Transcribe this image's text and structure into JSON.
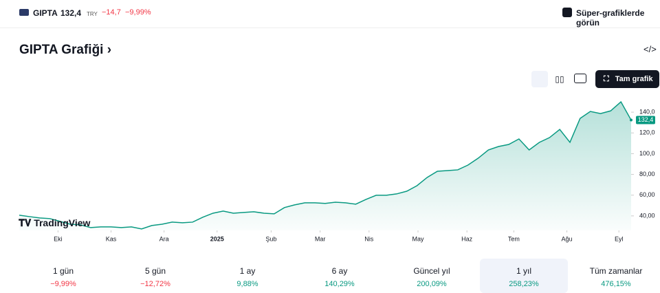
{
  "header": {
    "symbol": "GIPTA",
    "price": "132,4",
    "currency": "TRY",
    "change": "−14,7",
    "change_pct": "−9,99%",
    "super_link": "Süper-grafiklerde görün"
  },
  "section_title": "GIPTA Grafiği",
  "full_chart": "Tam grafik",
  "watermark": "TradingView",
  "chart_data": {
    "type": "area",
    "color": "#089981",
    "x": [
      0,
      1,
      2,
      3,
      4,
      5,
      6,
      7,
      8,
      9,
      10,
      11,
      12,
      13,
      14,
      15,
      16,
      17,
      18,
      19,
      20,
      21,
      22,
      23,
      24,
      25,
      26,
      27,
      28,
      29,
      30,
      31,
      32,
      33,
      34,
      35,
      36,
      37,
      38,
      39,
      40,
      41,
      42,
      43,
      44,
      45,
      46,
      47,
      48,
      49,
      50,
      51,
      52,
      53,
      54,
      55,
      56,
      57,
      58,
      59,
      60
    ],
    "values": [
      40.7,
      39.3,
      38,
      37.4,
      34.7,
      32,
      31.4,
      28.7,
      29.4,
      29.4,
      28.7,
      29.4,
      27.4,
      30.7,
      32,
      34,
      33.4,
      34,
      38.7,
      42.6,
      44.6,
      42.6,
      43.3,
      44,
      42.6,
      42,
      48,
      50.6,
      52.6,
      52.6,
      52,
      53.2,
      52.6,
      51.3,
      55.9,
      59.9,
      59.9,
      61.2,
      63.8,
      69.1,
      77.1,
      83,
      83.7,
      84.4,
      89,
      95.6,
      103.6,
      106.9,
      108.9,
      114.2,
      103.6,
      110.9,
      115.5,
      123.4,
      110.9,
      134,
      140.7,
      138.7,
      141.3,
      150,
      132.4
    ],
    "xlim": [
      0,
      60
    ],
    "xticks": [
      {
        "value": 3.8,
        "label": "Eki"
      },
      {
        "value": 9,
        "label": "Kas"
      },
      {
        "value": 14.2,
        "label": "Ara"
      },
      {
        "value": 19.4,
        "label": "2025"
      },
      {
        "value": 24.7,
        "label": "Şub"
      },
      {
        "value": 29.5,
        "label": "Mar"
      },
      {
        "value": 34.3,
        "label": "Nis"
      },
      {
        "value": 39.1,
        "label": "May"
      },
      {
        "value": 43.9,
        "label": "Haz"
      },
      {
        "value": 48.5,
        "label": "Tem"
      },
      {
        "value": 53.7,
        "label": "Ağu"
      },
      {
        "value": 58.8,
        "label": "Eyl"
      }
    ],
    "ylim": [
      26,
      152
    ],
    "yticks": [
      {
        "value": 40,
        "label": "40,00"
      },
      {
        "value": 60,
        "label": "60,00"
      },
      {
        "value": 80,
        "label": "80,00"
      },
      {
        "value": 100,
        "label": "100,0"
      },
      {
        "value": 120,
        "label": "120,0"
      },
      {
        "value": 140,
        "label": "140,0"
      }
    ]
  },
  "periods": [
    {
      "label": "1 gün",
      "change": "−9,99%"
    },
    {
      "label": "5 gün",
      "change": "−12,72%"
    },
    {
      "label": "1 ay",
      "change": "9,88%"
    },
    {
      "label": "6 ay",
      "change": "140,29%"
    },
    {
      "label": "Güncel yıl",
      "change": "200,09%"
    },
    {
      "label": "1 yıl",
      "change": "258,23%",
      "selected": true
    },
    {
      "label": "Tüm zamanlar",
      "change": "476,15%"
    }
  ]
}
